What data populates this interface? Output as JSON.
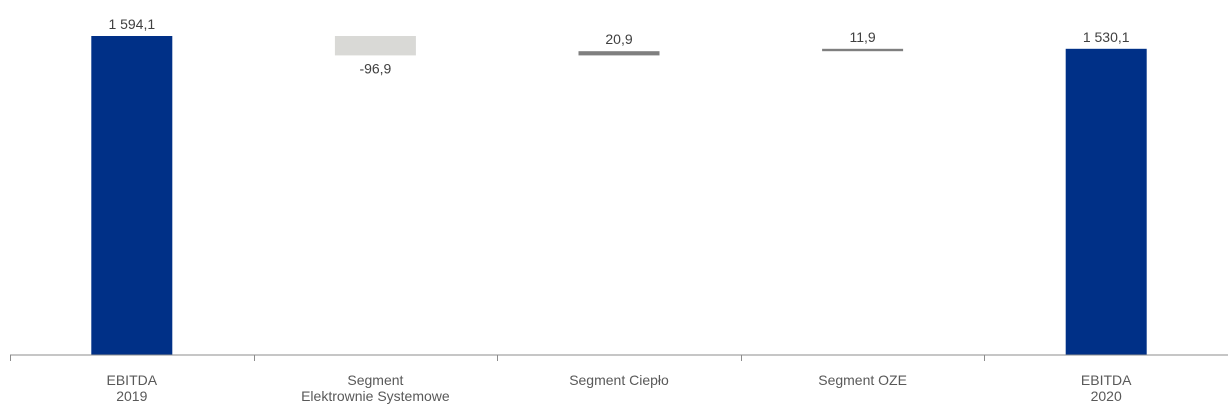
{
  "chart_data": {
    "type": "bar",
    "subtype": "waterfall",
    "categories": [
      [
        "EBITDA",
        "2019"
      ],
      [
        "Segment",
        "Elektrownie Systemowe"
      ],
      [
        "Segment Ciepło"
      ],
      [
        "Segment OZE"
      ],
      [
        "EBITDA",
        "2020"
      ]
    ],
    "values": [
      1594.1,
      -96.9,
      20.9,
      11.9,
      1530.1
    ],
    "value_labels": [
      "1 594,1",
      "-96,9",
      "20,9",
      "11,9",
      "1 530,1"
    ],
    "kinds": [
      "total",
      "delta",
      "delta",
      "delta",
      "total"
    ],
    "colors": {
      "total": "#003087",
      "negative": "#d9d9d6",
      "positive": "#7f7f7f",
      "axis": "#8c8c8c",
      "label": "#595959"
    },
    "title": "",
    "xlabel": "",
    "ylabel": "",
    "grid": false
  }
}
